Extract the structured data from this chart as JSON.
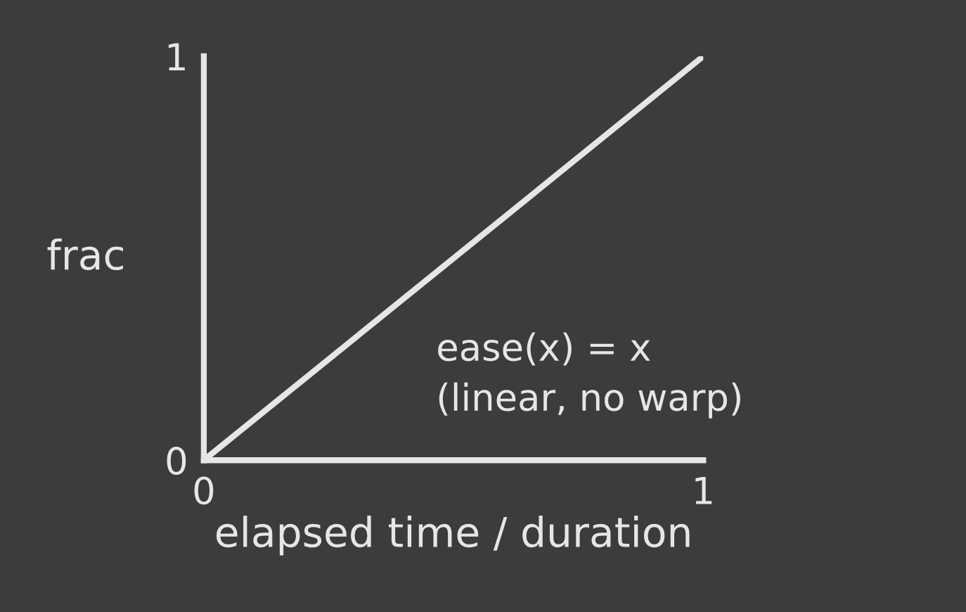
{
  "chart_data": {
    "type": "line",
    "xlabel": "elapsed time / duration",
    "ylabel": "frac",
    "x": [
      0,
      1
    ],
    "xlim": [
      0,
      1
    ],
    "ylim": [
      0,
      1
    ],
    "xticks": [
      0,
      1
    ],
    "yticks": [
      0,
      1
    ],
    "series": [
      {
        "color": "#e6e6e6",
        "values": [
          0,
          1
        ]
      }
    ],
    "annotations": [
      "ease(x) = x\n(linear, no warp)"
    ]
  }
}
